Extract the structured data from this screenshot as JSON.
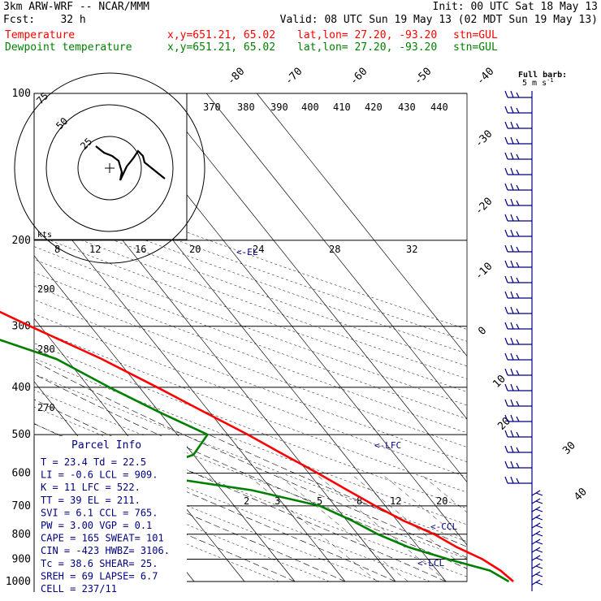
{
  "header": {
    "line1_left": "3km ARW-WRF -- NCAR/MMM",
    "line1_right": "Init: 00 UTC Sat 18 May 13",
    "line2_left": "Fcst:    32 h",
    "line2_right": "Valid: 08 UTC Sun 19 May 13 (02 MDT Sun 19 May 13)",
    "temp_label": "Temperature",
    "dew_label": "Dewpoint temperature",
    "xy": "x,y=651.21, 65.02",
    "latlon": "lat,lon= 27.20, -93.20",
    "stn": "stn=GUL"
  },
  "chart_data": {
    "type": "line",
    "chart_kind": "skew-T log-P sounding",
    "pressure_levels": [
      "100",
      "200",
      "300",
      "400",
      "500",
      "600",
      "700",
      "800",
      "900",
      "1000"
    ],
    "top_isotherm_labels": [
      "-80",
      "-70",
      "-60",
      "-50",
      "-40"
    ],
    "right_isotherm_labels": [
      "-30",
      "-20",
      "-10",
      "0",
      "10",
      "20",
      "30",
      "40"
    ],
    "theta_labels": [
      "370",
      "380",
      "390",
      "400",
      "410",
      "420",
      "430",
      "440"
    ],
    "mixing_ratio_labels": [
      "2",
      "3",
      "5",
      "8",
      "12",
      "20"
    ],
    "side_labels": [
      "290",
      "280",
      "270"
    ],
    "parcel_levels": [
      "<-EL",
      "<-LFC",
      "<-CCL",
      "<-LCL"
    ],
    "series": [
      {
        "name": "Temperature",
        "color": "#ff0000",
        "values": [
          [
            1000,
            23.4
          ],
          [
            950,
            22.6
          ],
          [
            900,
            20.8
          ],
          [
            850,
            17.6
          ],
          [
            800,
            15.2
          ],
          [
            750,
            11.2
          ],
          [
            700,
            8.0
          ],
          [
            650,
            5.0
          ],
          [
            600,
            1.8
          ],
          [
            550,
            -2.0
          ],
          [
            500,
            -6.0
          ],
          [
            450,
            -11.0
          ],
          [
            400,
            -16.5
          ],
          [
            350,
            -23.0
          ],
          [
            300,
            -32.0
          ],
          [
            250,
            -42.0
          ],
          [
            200,
            -54.0
          ],
          [
            180,
            -60.5
          ],
          [
            160,
            -65.0
          ],
          [
            140,
            -69.5
          ],
          [
            125,
            -69.0
          ],
          [
            110,
            -68.5
          ],
          [
            100,
            -67.5
          ]
        ]
      },
      {
        "name": "Dewpoint temperature",
        "color": "#008000",
        "values": [
          [
            1000,
            22.5
          ],
          [
            950,
            20.5
          ],
          [
            900,
            14.0
          ],
          [
            850,
            8.0
          ],
          [
            800,
            4.0
          ],
          [
            750,
            1.0
          ],
          [
            700,
            -3.0
          ],
          [
            650,
            -14.0
          ],
          [
            600,
            -34.0
          ],
          [
            550,
            -20.0
          ],
          [
            500,
            -14.0
          ],
          [
            450,
            -20.0
          ],
          [
            400,
            -26.0
          ],
          [
            350,
            -32.0
          ],
          [
            300,
            -46.0
          ],
          [
            250,
            -58.0
          ],
          [
            200,
            -69.0
          ],
          [
            170,
            -77.0
          ],
          [
            150,
            -82.0
          ],
          [
            130,
            -84.0
          ],
          [
            110,
            -84.5
          ],
          [
            100,
            -83.0
          ]
        ]
      }
    ],
    "hodograph": {
      "ring_labels": [
        "25",
        "50",
        "75"
      ],
      "units": "kts",
      "wind_scale_labels": [
        "8",
        "12",
        "16",
        "20",
        "24",
        "28",
        "32"
      ]
    },
    "wind_barb_title": "Full barb:",
    "wind_barb_unit": "5 m s",
    "wind_barb_unit_sup": "-1"
  },
  "parcel_info": {
    "title": "Parcel Info",
    "rows": [
      "T  =   23.4  Td =  22.5",
      "LI =   -0.6  LCL =  909.",
      "K  =     11  LFC =  522.",
      "TT =     39  EL  =  211.",
      "SVI =   6.1  CCL =  765.",
      "PW =   3.00  VGP =   0.1",
      "CAPE =  165  SWEAT=  101",
      "CIN =  -423  HWBZ= 3106.",
      "Tc =   38.6  SHEAR=  25.",
      "SREH =   69  LAPSE=  6.7",
      "CELL = 237/11"
    ]
  }
}
